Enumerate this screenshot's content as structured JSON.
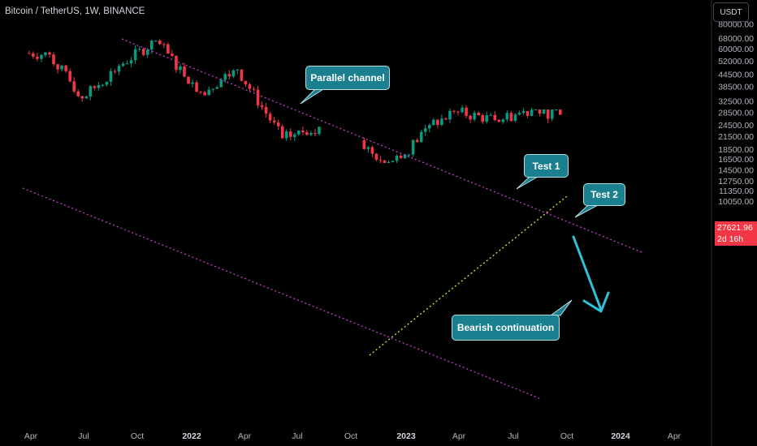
{
  "header": {
    "symbol": "Bitcoin / TetherUS, 1W, BINANCE",
    "currency_button": "USDT"
  },
  "price_tag": {
    "price": "27621.96",
    "countdown": "2d 16h"
  },
  "annotations": {
    "parallel_channel": "Parallel channel",
    "test1": "Test 1",
    "test2": "Test 2",
    "bearish": "Bearish continuation"
  },
  "colors": {
    "background": "#000000",
    "up_candle": "#089981",
    "down_candle": "#f23645",
    "channel_line": "#c042c8",
    "support_line": "#e6e63a",
    "arrow": "#2cc3d6",
    "callout_fill": "#1a7f8e"
  },
  "chart_data": {
    "type": "candlestick",
    "scale": "log",
    "y_ticks": [
      "80000.00",
      "68000.00",
      "60000.00",
      "52000.00",
      "44500.00",
      "38500.00",
      "32500.00",
      "28500.00",
      "24500.00",
      "21500.00",
      "18500.00",
      "16500.00",
      "14500.00",
      "12750.00",
      "11350.00",
      "10050.00"
    ],
    "x_ticks": [
      "Apr",
      "Jul",
      "Oct",
      "2022",
      "Apr",
      "Jul",
      "Oct",
      "2023",
      "Apr",
      "Jul",
      "Oct",
      "2024",
      "Apr"
    ],
    "last_price": 27621.96,
    "segments": [
      {
        "from": 20210329,
        "to": 20210510,
        "start": 57000,
        "end": 56000,
        "low": 42000,
        "high": 64000
      },
      {
        "from": 20210510,
        "to": 20210705,
        "start": 56000,
        "end": 33500,
        "low": 30000,
        "high": 59000
      },
      {
        "from": 20210705,
        "to": 20210906,
        "start": 33500,
        "end": 49000,
        "low": 29500,
        "high": 52800
      },
      {
        "from": 20210906,
        "to": 20211108,
        "start": 49000,
        "end": 66000,
        "low": 40000,
        "high": 69000
      },
      {
        "from": 20211108,
        "to": 20220124,
        "start": 66000,
        "end": 36000,
        "low": 33000,
        "high": 69000
      },
      {
        "from": 20220124,
        "to": 20220328,
        "start": 36000,
        "end": 47000,
        "low": 34300,
        "high": 48200
      },
      {
        "from": 20220328,
        "to": 20220613,
        "start": 47000,
        "end": 21000,
        "low": 17600,
        "high": 47500
      },
      {
        "from": 20220613,
        "to": 20220815,
        "start": 21000,
        "end": 24000,
        "low": 17600,
        "high": 25200
      },
      {
        "from": 20221024,
        "to": 20221121,
        "start": 20500,
        "end": 16300,
        "low": 15500,
        "high": 21500
      },
      {
        "from": 20221121,
        "to": 20230102,
        "start": 16300,
        "end": 16600,
        "low": 15700,
        "high": 17400
      },
      {
        "from": 20230102,
        "to": 20230220,
        "start": 16600,
        "end": 24500,
        "low": 16500,
        "high": 25300
      },
      {
        "from": 20230220,
        "to": 20230410,
        "start": 24500,
        "end": 28500,
        "low": 19600,
        "high": 30000
      },
      {
        "from": 20230410,
        "to": 20230612,
        "start": 28500,
        "end": 26000,
        "low": 24800,
        "high": 31000
      },
      {
        "from": 20230612,
        "to": 20230814,
        "start": 26000,
        "end": 29300,
        "low": 24800,
        "high": 31800
      },
      {
        "from": 20230814,
        "to": 20231002,
        "start": 29300,
        "end": 27622,
        "low": 24900,
        "high": 29400
      }
    ]
  }
}
